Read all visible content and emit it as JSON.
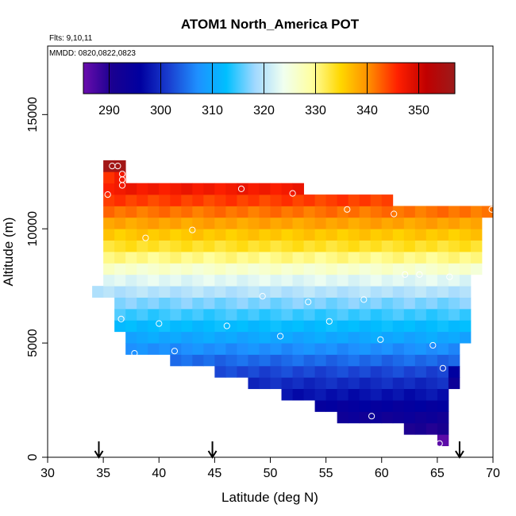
{
  "chart_data": {
    "type": "heatmap",
    "title": "ATOM1 North_America POT",
    "subtitle_flights": "Flts: 9,10,11",
    "subtitle_dates": "MMDD: 0820,0822,0823",
    "xlabel": "Latitude (deg N)",
    "ylabel": "Altitude (m)",
    "xlim": [
      30,
      70
    ],
    "ylim": [
      0,
      18000
    ],
    "x_ticks": [
      30,
      35,
      40,
      45,
      50,
      55,
      60,
      65,
      70
    ],
    "y_ticks": [
      0,
      5000,
      10000,
      15000
    ],
    "y_tick_labels": [
      "0",
      "5000",
      "10000",
      "15000"
    ],
    "colorbar": {
      "min": 285,
      "max": 357,
      "ticks": [
        290,
        300,
        310,
        320,
        330,
        340,
        350
      ],
      "colors": [
        "#6a0dad",
        "#1a0090",
        "#0000a0",
        "#1a3fd0",
        "#1e90ff",
        "#00bfff",
        "#a0d8ff",
        "#f0fff0",
        "#ffffa0",
        "#ffd700",
        "#ff8c00",
        "#ff2000",
        "#c00000",
        "#9b1b1b"
      ],
      "placement": "top"
    },
    "grid": false,
    "cell_lat_width": 1,
    "cell_alt_height": 500,
    "columns": [
      {
        "lat": 34,
        "top": 7500,
        "bottom": 7000
      },
      {
        "lat": 35,
        "top": 13000,
        "bottom": 7000
      },
      {
        "lat": 36,
        "top": 13000,
        "bottom": 5500
      },
      {
        "lat": 37,
        "top": 12000,
        "bottom": 4500
      },
      {
        "lat": 38,
        "top": 12000,
        "bottom": 4500
      },
      {
        "lat": 39,
        "top": 12000,
        "bottom": 4500
      },
      {
        "lat": 40,
        "top": 12000,
        "bottom": 4500
      },
      {
        "lat": 41,
        "top": 12000,
        "bottom": 4000
      },
      {
        "lat": 42,
        "top": 12000,
        "bottom": 4000
      },
      {
        "lat": 43,
        "top": 12000,
        "bottom": 4000
      },
      {
        "lat": 44,
        "top": 12000,
        "bottom": 4000
      },
      {
        "lat": 45,
        "top": 12000,
        "bottom": 3500
      },
      {
        "lat": 46,
        "top": 12000,
        "bottom": 3500
      },
      {
        "lat": 47,
        "top": 12000,
        "bottom": 3500
      },
      {
        "lat": 48,
        "top": 12000,
        "bottom": 3000
      },
      {
        "lat": 49,
        "top": 12000,
        "bottom": 3000
      },
      {
        "lat": 50,
        "top": 12000,
        "bottom": 3000
      },
      {
        "lat": 51,
        "top": 12000,
        "bottom": 2500
      },
      {
        "lat": 52,
        "top": 12000,
        "bottom": 2500
      },
      {
        "lat": 53,
        "top": 11500,
        "bottom": 2500
      },
      {
        "lat": 54,
        "top": 11500,
        "bottom": 2000
      },
      {
        "lat": 55,
        "top": 11500,
        "bottom": 2000
      },
      {
        "lat": 56,
        "top": 11500,
        "bottom": 1500
      },
      {
        "lat": 57,
        "top": 11500,
        "bottom": 1500
      },
      {
        "lat": 58,
        "top": 11500,
        "bottom": 1500
      },
      {
        "lat": 59,
        "top": 11500,
        "bottom": 1500
      },
      {
        "lat": 60,
        "top": 11500,
        "bottom": 1500
      },
      {
        "lat": 61,
        "top": 11000,
        "bottom": 1500
      },
      {
        "lat": 62,
        "top": 11000,
        "bottom": 1000
      },
      {
        "lat": 63,
        "top": 11000,
        "bottom": 1000
      },
      {
        "lat": 64,
        "top": 11000,
        "bottom": 1000
      },
      {
        "lat": 65,
        "top": 11000,
        "bottom": 500
      },
      {
        "lat": 66,
        "top": 11000,
        "bottom": 3000
      },
      {
        "lat": 67,
        "top": 11000,
        "bottom": 5000
      },
      {
        "lat": 68,
        "top": 11000,
        "bottom": 8000
      },
      {
        "lat": 69,
        "top": 11000,
        "bottom": 10500
      }
    ],
    "cell_overrides": [
      {
        "lat": 35,
        "alt": 12500,
        "value": 356
      },
      {
        "lat": 36,
        "alt": 12500,
        "value": 356
      },
      {
        "lat": 36,
        "alt": 12000,
        "value": 347
      },
      {
        "lat": 35,
        "alt": 12000,
        "value": 345
      },
      {
        "lat": 65,
        "alt": 500,
        "value": 286
      },
      {
        "lat": 66,
        "alt": 3000,
        "value": 293
      },
      {
        "lat": 66,
        "alt": 3500,
        "value": 296
      }
    ],
    "profile": {
      "description_values": [
        {
          "alt": 500,
          "value": 287
        },
        {
          "alt": 2000,
          "value": 294
        },
        {
          "alt": 4000,
          "value": 303
        },
        {
          "alt": 5500,
          "value": 311
        },
        {
          "alt": 7000,
          "value": 318
        },
        {
          "alt": 8000,
          "value": 324
        },
        {
          "alt": 9000,
          "value": 332
        },
        {
          "alt": 10000,
          "value": 337
        },
        {
          "alt": 11000,
          "value": 343
        },
        {
          "alt": 12000,
          "value": 348
        },
        {
          "alt": 13000,
          "value": 352
        }
      ]
    },
    "points": [
      {
        "lat": 35.8,
        "alt": 12750
      },
      {
        "lat": 36.3,
        "alt": 12750
      },
      {
        "lat": 36.7,
        "alt": 12400
      },
      {
        "lat": 36.7,
        "alt": 12150
      },
      {
        "lat": 36.7,
        "alt": 11900
      },
      {
        "lat": 35.4,
        "alt": 11500
      },
      {
        "lat": 47.4,
        "alt": 11750
      },
      {
        "lat": 52.0,
        "alt": 11550
      },
      {
        "lat": 56.9,
        "alt": 10850
      },
      {
        "lat": 61.1,
        "alt": 10650
      },
      {
        "lat": 69.9,
        "alt": 10850
      },
      {
        "lat": 43.0,
        "alt": 9950
      },
      {
        "lat": 38.8,
        "alt": 9600
      },
      {
        "lat": 62.1,
        "alt": 8000
      },
      {
        "lat": 63.4,
        "alt": 8000
      },
      {
        "lat": 66.1,
        "alt": 7900
      },
      {
        "lat": 49.3,
        "alt": 7050
      },
      {
        "lat": 53.4,
        "alt": 6800
      },
      {
        "lat": 58.4,
        "alt": 6900
      },
      {
        "lat": 36.6,
        "alt": 6050
      },
      {
        "lat": 40.0,
        "alt": 5850
      },
      {
        "lat": 46.1,
        "alt": 5750
      },
      {
        "lat": 55.3,
        "alt": 5950
      },
      {
        "lat": 50.9,
        "alt": 5300
      },
      {
        "lat": 59.9,
        "alt": 5150
      },
      {
        "lat": 41.4,
        "alt": 4650
      },
      {
        "lat": 37.8,
        "alt": 4550
      },
      {
        "lat": 64.6,
        "alt": 4900
      },
      {
        "lat": 65.5,
        "alt": 3900
      },
      {
        "lat": 59.1,
        "alt": 1800
      },
      {
        "lat": 65.2,
        "alt": 600
      }
    ],
    "arrows_lat": [
      34.6,
      44.8,
      67.0
    ]
  }
}
